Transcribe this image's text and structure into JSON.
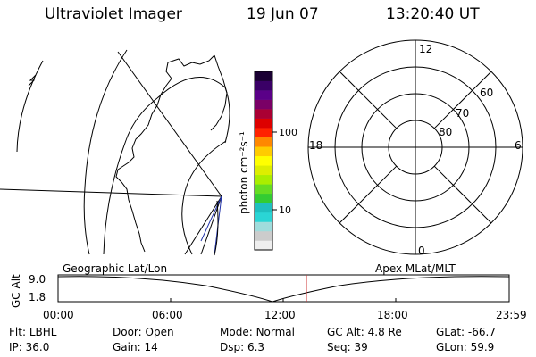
{
  "header": {
    "title": "Ultraviolet Imager",
    "date": "19 Jun 07",
    "time": "13:20:40 UT"
  },
  "colorbar": {
    "unit_label": "photon cm⁻²s⁻¹",
    "ticks": [
      "100",
      "10"
    ],
    "colors": [
      "#eeeeee",
      "#cccccc",
      "#9fdcdc",
      "#2ad5d5",
      "#1fbfbf",
      "#33cc33",
      "#66dd22",
      "#aaee00",
      "#ddee00",
      "#ffff00",
      "#ffcc00",
      "#ff8800",
      "#ff2200",
      "#dd0000",
      "#aa0033",
      "#7a0066",
      "#5a0088",
      "#3a0066",
      "#1a0033"
    ]
  },
  "polar_plot": {
    "mlt_labels": {
      "top": "12",
      "bottom": "0",
      "left": "18",
      "right": "6"
    },
    "lat_labels": [
      "60",
      "70",
      "80"
    ]
  },
  "timeline": {
    "y_label": "GC Alt",
    "y_ticks": [
      "9.0",
      "1.8"
    ],
    "left_title": "Geographic Lat/Lon",
    "right_title": "Apex MLat/MLT",
    "x_ticks": [
      "00:00",
      "06:00",
      "12:00",
      "18:00",
      "23:59"
    ],
    "marker_color": "#cc3333"
  },
  "info": {
    "row1": [
      {
        "label": "Flt:",
        "value": "LBHL"
      },
      {
        "label": "Door:",
        "value": "Open"
      },
      {
        "label": "Mode:",
        "value": "Normal"
      },
      {
        "label": "GC Alt:",
        "value": "4.8 Re"
      },
      {
        "label": "GLat:",
        "value": "-66.7"
      }
    ],
    "row2": [
      {
        "label": "IP:",
        "value": "36.0"
      },
      {
        "label": "Gain:",
        "value": "14"
      },
      {
        "label": "Dsp:",
        "value": "6.3"
      },
      {
        "label": "Seq:",
        "value": "39"
      },
      {
        "label": "GLon:",
        "value": "59.9"
      }
    ]
  }
}
